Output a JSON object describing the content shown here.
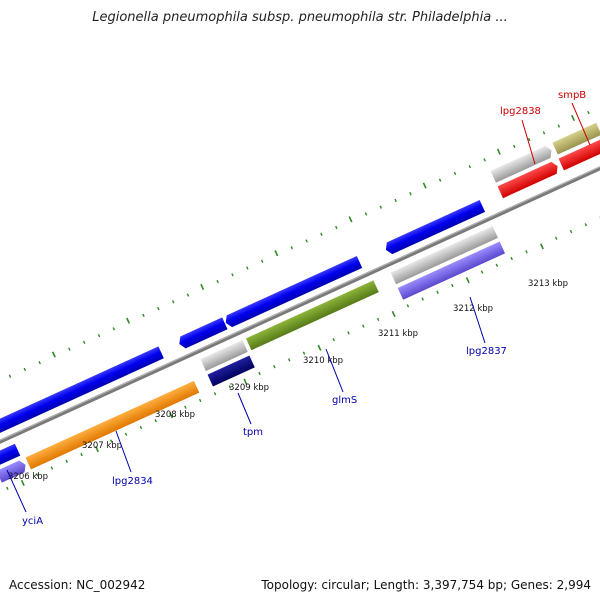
{
  "title": "Legionella pneumophila subsp. pneumophila str. Philadelphia ...",
  "footer": {
    "accession": "Accession: NC_002942",
    "summary": "Topology: circular; Length: 3,397,754 bp; Genes: 2,994"
  },
  "ruler": {
    "labels": [
      "3206 kbp",
      "3207 kbp",
      "3208 kbp",
      "3209 kbp",
      "3210 kbp",
      "3211 kbp",
      "3212 kbp",
      "3213 kbp"
    ]
  },
  "genes": [
    {
      "name": "yciA",
      "color": "#0000aa"
    },
    {
      "name": "lpg2834",
      "color": "#0000aa"
    },
    {
      "name": "tpm",
      "color": "#0000aa"
    },
    {
      "name": "glmS",
      "color": "#0000aa"
    },
    {
      "name": "lpg2837",
      "color": "#0000aa"
    },
    {
      "name": "lpg2838",
      "color": "#cc0000"
    },
    {
      "name": "smpB",
      "color": "#cc0000"
    }
  ],
  "colors": {
    "backbone": "#808080",
    "tick": "#2e8b22",
    "cds_blue": "#0000ee",
    "orange": "#ff8c00",
    "olive": "#6b8e23",
    "gray": "#c0c0c0",
    "red": "#ff0000",
    "navy": "#000080",
    "purple": "#7b68ee",
    "khaki": "#bdb76b"
  }
}
